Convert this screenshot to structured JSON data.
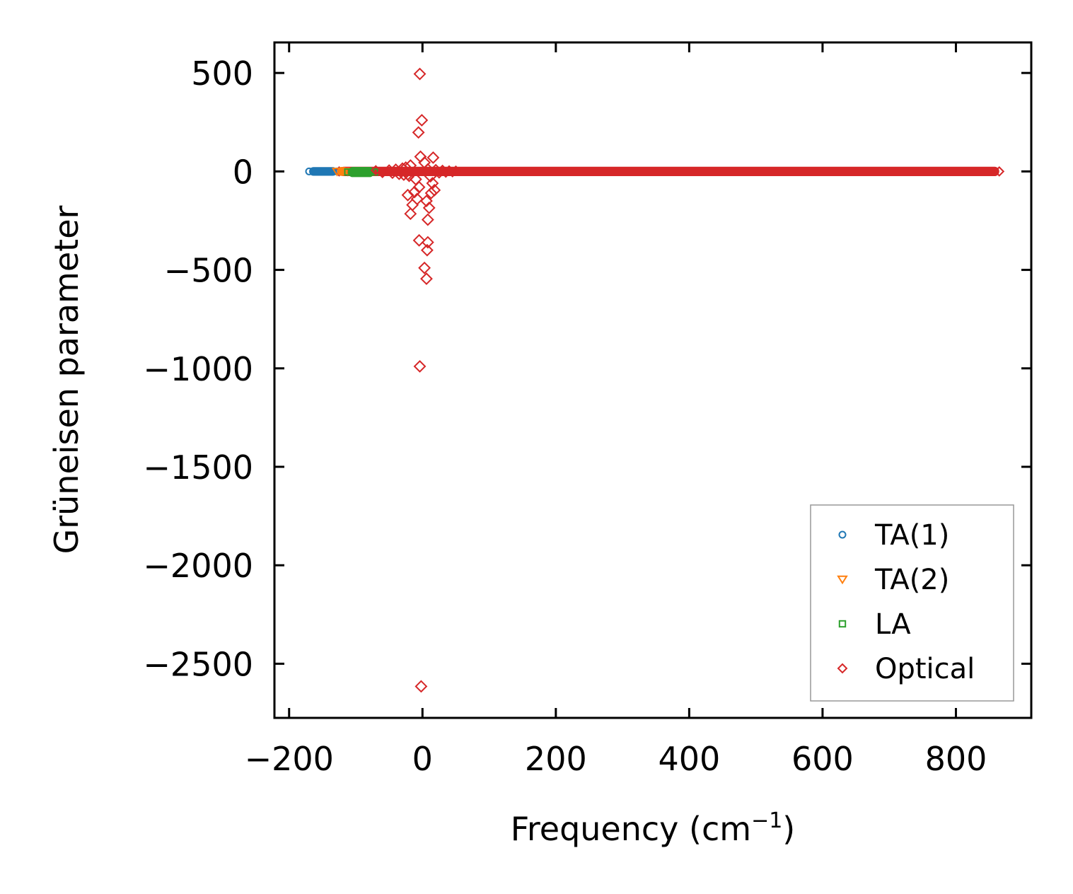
{
  "chart_data": {
    "type": "scatter",
    "xlabel": "Frequency (cm",
    "xlabel_superscript": "−1",
    "xlabel_suffix": ")",
    "ylabel": "Grüneisen parameter",
    "xlim": [
      -222,
      913
    ],
    "ylim": [
      -2775,
      655
    ],
    "grid": false,
    "legend_position": "lower-right",
    "x_ticks": [
      -200,
      0,
      200,
      400,
      600,
      800
    ],
    "x_tick_labels": [
      "−200",
      "0",
      "200",
      "400",
      "600",
      "800"
    ],
    "y_ticks": [
      500,
      0,
      -500,
      -1000,
      -1500,
      -2000,
      -2500
    ],
    "y_tick_labels": [
      "500",
      "0",
      "−500",
      "−1000",
      "−1500",
      "−2000",
      "−2500"
    ],
    "series": [
      {
        "name": "TA(1)",
        "marker": "circle",
        "color": "#1f77b4",
        "band": {
          "x_start": -170,
          "x_end": -128,
          "y_center": 0,
          "y_spread": 4
        }
      },
      {
        "name": "TA(2)",
        "marker": "triangle-down",
        "color": "#ff7f0e",
        "band": {
          "x_start": -128,
          "x_end": -112,
          "y_center": 0,
          "y_spread": 5
        }
      },
      {
        "name": "LA",
        "marker": "square",
        "color": "#2ca02c",
        "band": {
          "x_start": -112,
          "x_end": -72,
          "y_center": -3,
          "y_spread": 8
        }
      },
      {
        "name": "Optical",
        "marker": "diamond",
        "color": "#d62728",
        "band": {
          "x_start": -125,
          "x_end": 865,
          "y_center": 0,
          "y_spread": 6
        },
        "outliers": [
          {
            "x": -4,
            "y": 495
          },
          {
            "x": -1,
            "y": 260
          },
          {
            "x": -6,
            "y": 198
          },
          {
            "x": -3,
            "y": 75
          },
          {
            "x": 16,
            "y": 70
          },
          {
            "x": 3,
            "y": 45
          },
          {
            "x": -18,
            "y": 30
          },
          {
            "x": 8,
            "y": 10
          },
          {
            "x": -22,
            "y": -15
          },
          {
            "x": 12,
            "y": -25
          },
          {
            "x": -10,
            "y": -40
          },
          {
            "x": 15,
            "y": -60
          },
          {
            "x": -5,
            "y": -80
          },
          {
            "x": 18,
            "y": -95
          },
          {
            "x": -12,
            "y": -105
          },
          {
            "x": 13,
            "y": -110
          },
          {
            "x": -22,
            "y": -120
          },
          {
            "x": -8,
            "y": -140
          },
          {
            "x": 6,
            "y": -150
          },
          {
            "x": -15,
            "y": -170
          },
          {
            "x": 10,
            "y": -185
          },
          {
            "x": -18,
            "y": -215
          },
          {
            "x": 8,
            "y": -245
          },
          {
            "x": -5,
            "y": -350
          },
          {
            "x": 8,
            "y": -360
          },
          {
            "x": 7,
            "y": -400
          },
          {
            "x": 3,
            "y": -490
          },
          {
            "x": 6,
            "y": -545
          },
          {
            "x": -4,
            "y": -990
          },
          {
            "x": -2,
            "y": -2615
          }
        ]
      }
    ]
  }
}
